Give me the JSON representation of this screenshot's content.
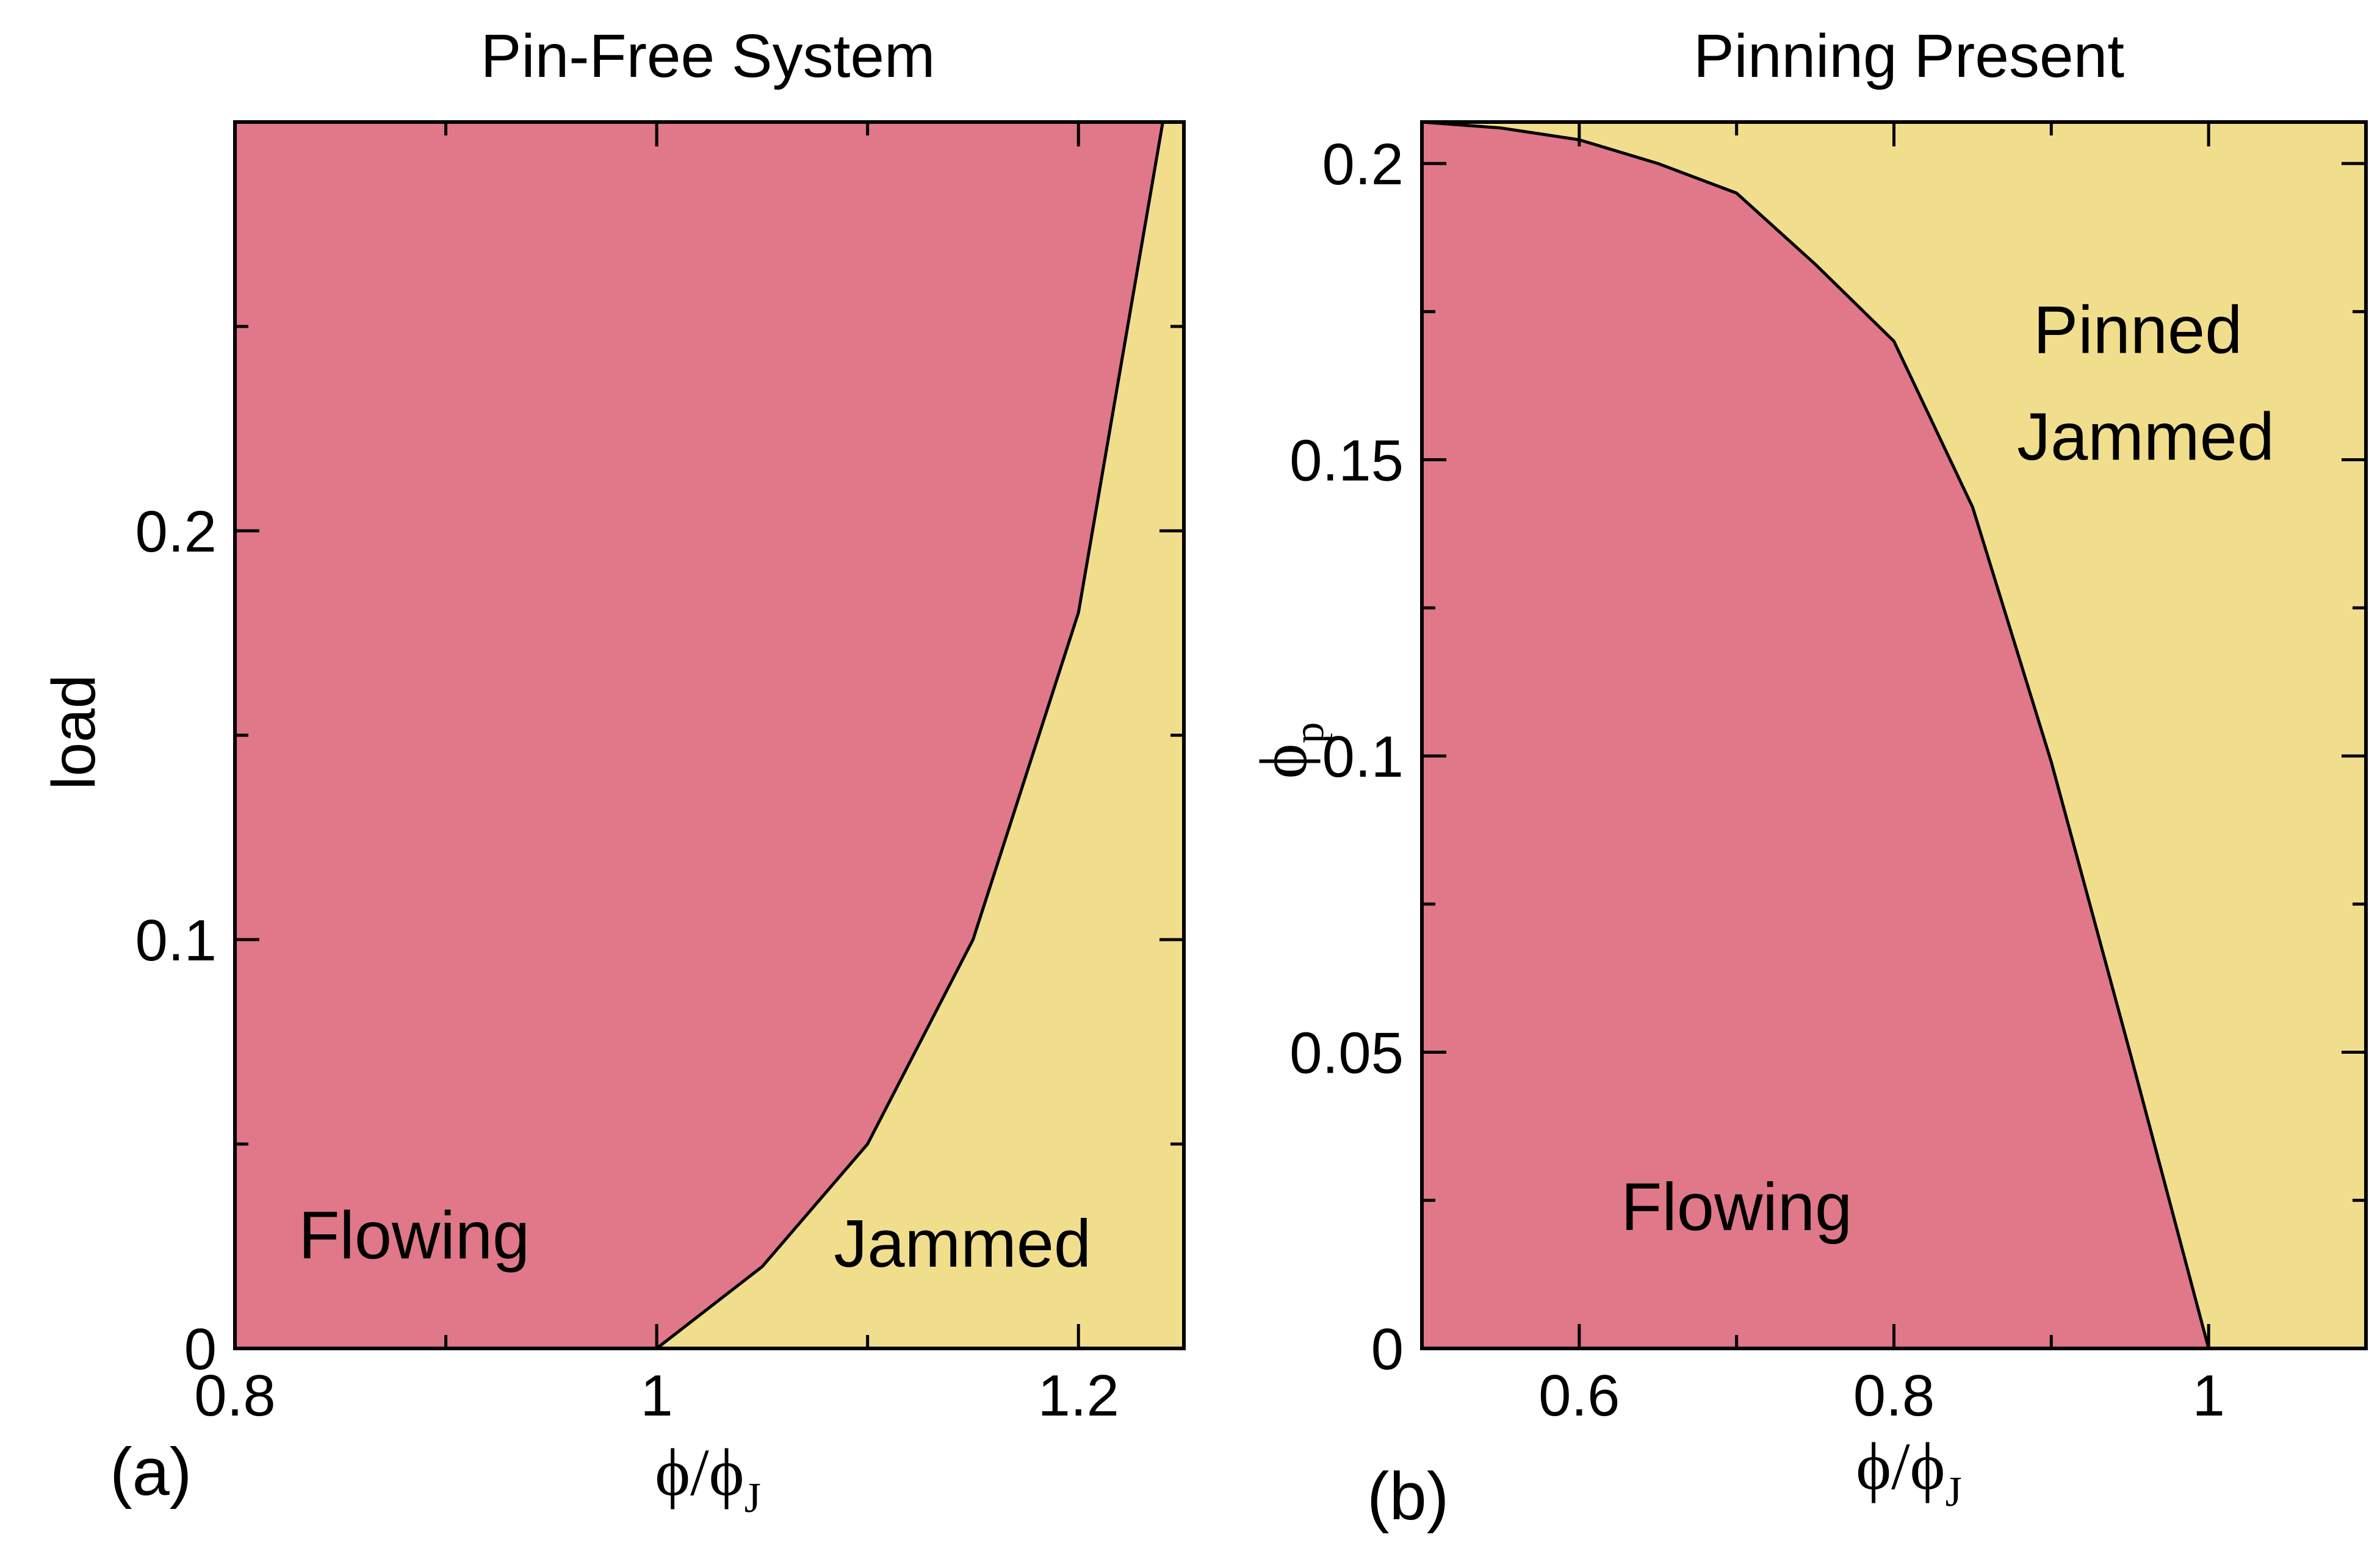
{
  "colors": {
    "flowing": "#E07889",
    "jammed": "#F0DE8C",
    "line": "#000000",
    "frame": "#000000"
  },
  "chart_data": [
    {
      "panel": "(a)",
      "type": "area",
      "title": "Pin-Free System",
      "xlabel": {
        "main": "ϕ/ϕ",
        "sub": "J"
      },
      "ylabel": {
        "main": "load",
        "sub": ""
      },
      "xlim": [
        0.8,
        1.25
      ],
      "ylim": [
        0,
        0.3
      ],
      "xticks": [
        0.8,
        1.0,
        1.2
      ],
      "xtick_labels": [
        "0.8",
        "1",
        "1.2"
      ],
      "xminor": [
        0.9,
        1.1
      ],
      "yticks": [
        0,
        0.1,
        0.2
      ],
      "ytick_labels": [
        "0",
        "0.1",
        "0.2"
      ],
      "yminor": [
        0.05,
        0.15,
        0.25
      ],
      "boundary": {
        "x": [
          1.0,
          1.05,
          1.1,
          1.15,
          1.2,
          1.24
        ],
        "y": [
          0.0,
          0.02,
          0.05,
          0.1,
          0.18,
          0.3
        ]
      },
      "regions": {
        "left_fill": "flowing",
        "right_fill": "jammed"
      },
      "annotations": [
        {
          "text": "Flowing",
          "x": 0.885,
          "y": 0.022
        },
        {
          "text": "Jammed",
          "x": 1.145,
          "y": 0.02
        }
      ]
    },
    {
      "panel": "(b)",
      "type": "area",
      "title": "Pinning Present",
      "xlabel": {
        "main": "ϕ/ϕ",
        "sub": "J"
      },
      "ylabel": {
        "main": "ϕ",
        "sub": "p"
      },
      "xlim": [
        0.5,
        1.1
      ],
      "ylim": [
        0,
        0.207
      ],
      "xticks": [
        0.6,
        0.8,
        1.0
      ],
      "xtick_labels": [
        "0.6",
        "0.8",
        "1"
      ],
      "xminor": [
        0.7,
        0.9
      ],
      "yticks": [
        0,
        0.05,
        0.1,
        0.15,
        0.2
      ],
      "ytick_labels": [
        "0",
        "0.05",
        "0.1",
        "0.15",
        "0.2"
      ],
      "yminor": [
        0.025,
        0.075,
        0.125,
        0.175
      ],
      "boundary": {
        "x": [
          0.5,
          0.55,
          0.6,
          0.65,
          0.7,
          0.75,
          0.8,
          0.85,
          0.9,
          0.95,
          1.0
        ],
        "y": [
          0.207,
          0.206,
          0.204,
          0.2,
          0.195,
          0.183,
          0.17,
          0.142,
          0.099,
          0.05,
          0.0
        ]
      },
      "regions": {
        "left_fill": "flowing",
        "right_fill": "jammed"
      },
      "annotations": [
        {
          "text": "Flowing",
          "x": 0.7,
          "y": 0.02
        },
        {
          "text": "Pinned",
          "x": 0.955,
          "y": 0.168
        },
        {
          "text": "Jammed",
          "x": 0.96,
          "y": 0.15
        }
      ]
    }
  ]
}
